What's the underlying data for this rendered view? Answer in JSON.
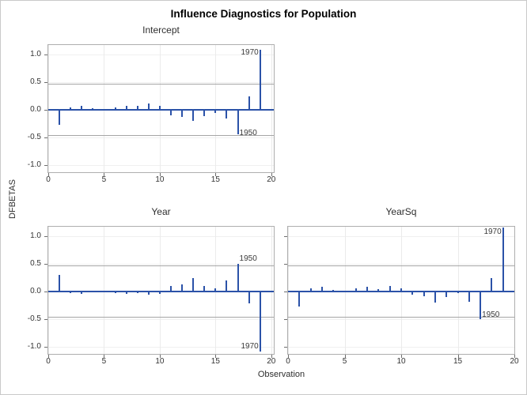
{
  "title": "Influence Diagnostics for Population",
  "axis_labels": {
    "y": "DFBETAS",
    "x": "Observation"
  },
  "colors": {
    "needle": "#2b52a8",
    "zero_line": "#2b52a8",
    "reference_line": "#a6a6a6",
    "grid": "#eeeeee",
    "frame": "#aeaeae",
    "text": "#2e2e2e",
    "background": "#ffffff"
  },
  "chart_data": {
    "type": "bar",
    "subtype": "needle-plot-panel",
    "title": "Influence Diagnostics for Population",
    "xlabel": "Observation",
    "ylabel": "DFBETAS",
    "x": [
      1,
      2,
      3,
      4,
      5,
      6,
      7,
      8,
      9,
      10,
      11,
      12,
      13,
      14,
      15,
      16,
      17,
      18,
      19
    ],
    "x_ticks": [
      0,
      5,
      10,
      15,
      20
    ],
    "y_ticks": [
      1.0,
      0.5,
      0.0,
      -0.5,
      -1.0
    ],
    "y_tick_labels": [
      "1.0",
      "0.5",
      "0.0",
      "-0.5",
      "-1.0"
    ],
    "ylim": [
      -1.15,
      1.18
    ],
    "xlim": [
      0,
      20
    ],
    "reference_lines": [
      0.46,
      -0.46
    ],
    "grid": true,
    "legend": "none",
    "panels": [
      {
        "title": "Intercept",
        "values": [
          -0.28,
          0.03,
          0.06,
          0.02,
          0.01,
          0.03,
          0.06,
          0.06,
          0.11,
          0.06,
          -0.1,
          -0.13,
          -0.21,
          -0.12,
          -0.06,
          -0.17,
          -0.45,
          0.24,
          1.08
        ],
        "annotations": [
          {
            "text": "1970",
            "obs": 19,
            "value": 1.02,
            "side": "left"
          },
          {
            "text": "1950",
            "obs": 17,
            "value": -0.43,
            "side": "right"
          }
        ]
      },
      {
        "title": "Year",
        "values": [
          0.29,
          -0.03,
          -0.05,
          -0.02,
          -0.01,
          -0.03,
          -0.05,
          -0.03,
          -0.06,
          -0.05,
          0.09,
          0.12,
          0.24,
          0.1,
          0.05,
          0.19,
          0.5,
          -0.22,
          -1.09
        ],
        "annotations": [
          {
            "text": "1950",
            "obs": 17,
            "value": 0.58,
            "side": "right"
          },
          {
            "text": "1970",
            "obs": 19,
            "value": -1.0,
            "side": "left"
          }
        ]
      },
      {
        "title": "YearSq",
        "values": [
          -0.28,
          0.05,
          0.08,
          0.02,
          0.01,
          0.05,
          0.08,
          0.04,
          0.09,
          0.05,
          -0.07,
          -0.09,
          -0.21,
          -0.1,
          -0.04,
          -0.19,
          -0.5,
          0.24,
          1.15
        ],
        "annotations": [
          {
            "text": "1970",
            "obs": 19,
            "value": 1.06,
            "side": "left"
          },
          {
            "text": "1950",
            "obs": 17,
            "value": -0.44,
            "side": "right"
          }
        ]
      }
    ]
  }
}
